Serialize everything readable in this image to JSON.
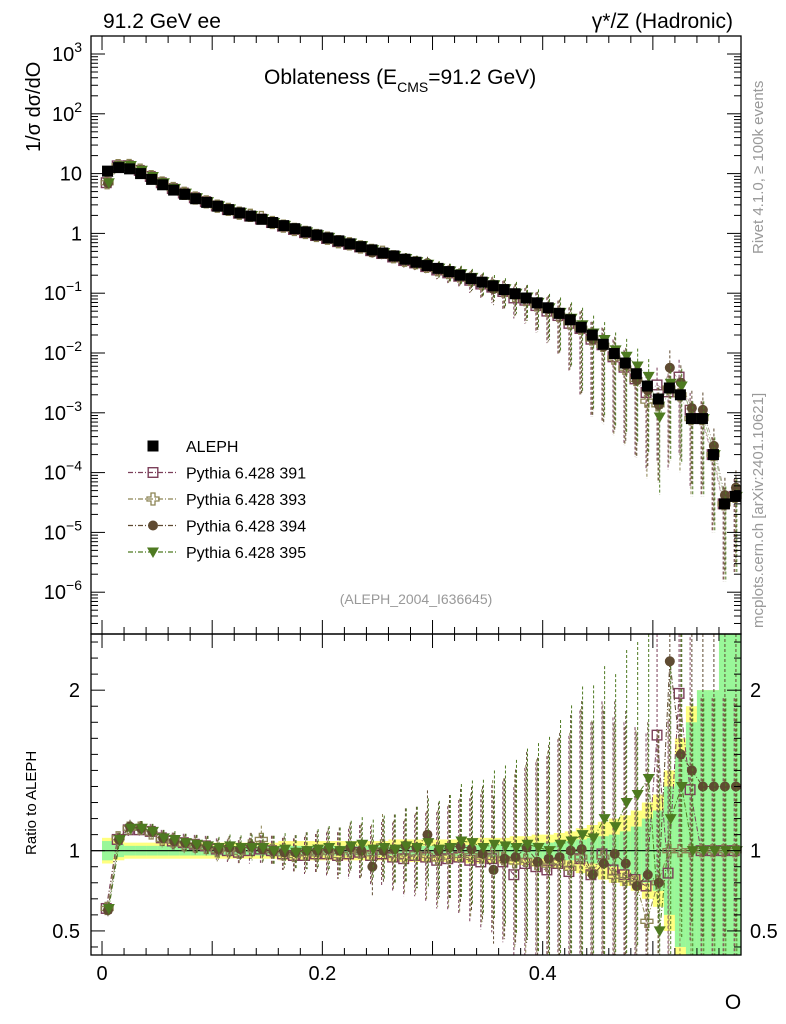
{
  "chart_data": {
    "type": "scatter",
    "header_left": "91.2 GeV ee",
    "header_right": "γ*/Z (Hadronic)",
    "title_main": "Oblateness (E",
    "title_sub": "CMS",
    "title_tail": "=91.2 GeV)",
    "ylabel_main": "1/σ  dσ/dO",
    "ylabel_ratio": "Ratio to ALEPH",
    "xlabel": "O",
    "watermark": "(ALEPH_2004_I636645)",
    "side_label_top": "Rivet 4.1.0, ≥ 100k events",
    "side_label_bottom": "mcplots.cern.ch [arXiv:2401.10621]",
    "xlim": [
      -0.01,
      0.58
    ],
    "ylim_main": [
      2e-07,
      2000
    ],
    "ylim_ratio": [
      0.35,
      2.35
    ],
    "x_ticks": [
      0,
      0.2,
      0.4
    ],
    "x_tick_labels": [
      "0",
      "0.2",
      "0.4"
    ],
    "ratio_ticks": [
      0.5,
      1,
      2
    ],
    "ratio_tick_labels": [
      "0.5",
      "1",
      "2"
    ],
    "main_ticks": [
      1e-06,
      1e-05,
      0.0001,
      0.001,
      0.01,
      0.1,
      1,
      10,
      100,
      1000
    ],
    "main_tick_labels": [
      {
        "base": "10",
        "exp": "−6"
      },
      {
        "base": "10",
        "exp": "−5"
      },
      {
        "base": "10",
        "exp": "−4"
      },
      {
        "base": "10",
        "exp": "−3"
      },
      {
        "base": "10",
        "exp": "−2"
      },
      {
        "base": "10",
        "exp": "−1"
      },
      {
        "base": "1",
        "exp": ""
      },
      {
        "base": "10",
        "exp": ""
      },
      {
        "base": "10",
        "exp": "2"
      },
      {
        "base": "10",
        "exp": "3"
      }
    ],
    "data": {
      "name": "ALEPH",
      "color": "#000000",
      "x": [
        0.005,
        0.015,
        0.025,
        0.035,
        0.045,
        0.055,
        0.065,
        0.075,
        0.085,
        0.095,
        0.105,
        0.115,
        0.125,
        0.135,
        0.145,
        0.155,
        0.165,
        0.175,
        0.185,
        0.195,
        0.205,
        0.215,
        0.225,
        0.235,
        0.245,
        0.255,
        0.265,
        0.275,
        0.285,
        0.295,
        0.305,
        0.315,
        0.325,
        0.335,
        0.345,
        0.355,
        0.365,
        0.375,
        0.385,
        0.395,
        0.405,
        0.415,
        0.425,
        0.435,
        0.445,
        0.455,
        0.465,
        0.475,
        0.485,
        0.495,
        0.505,
        0.515,
        0.525,
        0.535,
        0.545,
        0.555,
        0.565,
        0.575
      ],
      "y": [
        11.0,
        12.6,
        12.0,
        10.0,
        8.0,
        6.5,
        5.3,
        4.5,
        3.8,
        3.3,
        2.85,
        2.5,
        2.2,
        1.95,
        1.72,
        1.52,
        1.35,
        1.2,
        1.06,
        0.94,
        0.84,
        0.75,
        0.67,
        0.6,
        0.53,
        0.47,
        0.42,
        0.37,
        0.33,
        0.29,
        0.26,
        0.23,
        0.2,
        0.175,
        0.153,
        0.133,
        0.115,
        0.098,
        0.083,
        0.069,
        0.057,
        0.046,
        0.036,
        0.027,
        0.02,
        0.014,
        0.0098,
        0.0068,
        0.0045,
        0.0028,
        0.0017,
        0.0026,
        0.002,
        0.0008,
        0.0008,
        0.0002,
        3e-05,
        4e-05
      ],
      "stat_band": [
        0.06,
        0.04,
        0.03,
        0.03,
        0.03,
        0.03,
        0.03,
        0.03,
        0.03,
        0.03,
        0.03,
        0.03,
        0.03,
        0.03,
        0.03,
        0.03,
        0.03,
        0.03,
        0.03,
        0.03,
        0.03,
        0.03,
        0.03,
        0.03,
        0.03,
        0.03,
        0.03,
        0.03,
        0.03,
        0.03,
        0.03,
        0.03,
        0.035,
        0.035,
        0.035,
        0.04,
        0.04,
        0.045,
        0.045,
        0.05,
        0.05,
        0.055,
        0.06,
        0.07,
        0.08,
        0.09,
        0.1,
        0.12,
        0.15,
        0.2,
        0.25,
        0.4,
        0.6,
        0.8,
        1.0,
        1.0,
        1.4,
        1.4
      ],
      "total_band": [
        0.08,
        0.06,
        0.05,
        0.05,
        0.05,
        0.05,
        0.05,
        0.05,
        0.05,
        0.05,
        0.05,
        0.05,
        0.05,
        0.05,
        0.05,
        0.05,
        0.06,
        0.06,
        0.06,
        0.06,
        0.06,
        0.06,
        0.06,
        0.06,
        0.06,
        0.06,
        0.07,
        0.07,
        0.07,
        0.07,
        0.07,
        0.07,
        0.07,
        0.08,
        0.08,
        0.08,
        0.08,
        0.09,
        0.09,
        0.1,
        0.1,
        0.11,
        0.12,
        0.14,
        0.16,
        0.18,
        0.2,
        0.22,
        0.25,
        0.3,
        0.35,
        0.5,
        0.7,
        0.9,
        1.0,
        1.0,
        1.4,
        1.4
      ]
    },
    "series": [
      {
        "name": "Pythia 6.428 391",
        "color": "#7b3f5a",
        "marker": "open-square",
        "values": [
          0.64,
          1.07,
          1.13,
          1.13,
          1.12,
          1.08,
          1.06,
          1.05,
          1.04,
          1.03,
          1.01,
          1.0,
          0.99,
          1.0,
          1.01,
          1.0,
          0.98,
          0.97,
          0.97,
          0.98,
          0.98,
          0.97,
          0.98,
          0.99,
          0.97,
          0.98,
          0.96,
          0.95,
          0.97,
          0.96,
          0.94,
          0.95,
          0.96,
          0.94,
          0.93,
          0.95,
          0.93,
          0.85,
          0.92,
          0.9,
          0.88,
          0.92,
          0.87,
          0.95,
          0.85,
          0.98,
          0.88,
          0.85,
          0.82,
          0.78,
          1.72,
          0.86,
          1.98,
          1.38,
          1.0,
          1.0,
          1.0,
          1.0
        ]
      },
      {
        "name": "Pythia 6.428 393",
        "color": "#8c8454",
        "marker": "open-cross",
        "values": [
          0.64,
          1.08,
          1.14,
          1.14,
          1.11,
          1.07,
          1.06,
          1.04,
          1.03,
          1.02,
          1.0,
          1.01,
          0.99,
          1.03,
          1.07,
          1.0,
          0.98,
          0.97,
          0.98,
          0.98,
          0.99,
          0.97,
          1.0,
          0.99,
          0.98,
          1.03,
          0.97,
          0.96,
          0.98,
          0.97,
          0.95,
          0.96,
          0.97,
          0.97,
          0.96,
          0.98,
          0.95,
          0.93,
          0.94,
          0.92,
          0.91,
          0.93,
          0.89,
          0.96,
          0.86,
          0.96,
          0.84,
          0.82,
          0.8,
          0.56,
          0.8,
          1.0,
          1.0,
          1.0,
          1.0,
          1.0,
          1.0,
          1.0
        ]
      },
      {
        "name": "Pythia 6.428 394",
        "color": "#5f4b32",
        "marker": "filled-circle",
        "values": [
          0.63,
          1.07,
          1.15,
          1.14,
          1.12,
          1.08,
          1.06,
          1.05,
          1.04,
          1.03,
          1.01,
          1.02,
          1.01,
          1.03,
          1.01,
          1.0,
          0.99,
          0.99,
          1.0,
          1.0,
          1.01,
          1.0,
          1.02,
          1.0,
          0.9,
          1.0,
          1.01,
          1.03,
          1.02,
          1.1,
          1.0,
          1.02,
          1.03,
          1.01,
          0.98,
          0.88,
          0.95,
          0.96,
          1.02,
          0.93,
          0.95,
          0.96,
          1.0,
          1.01,
          0.85,
          0.92,
          0.98,
          0.92,
          0.78,
          0.85,
          0.8,
          2.18,
          1.6,
          1.5,
          1.4,
          1.4,
          1.4,
          1.4
        ]
      },
      {
        "name": "Pythia 6.428 395",
        "color": "#4e7a21",
        "marker": "filled-triangle-down",
        "values": [
          0.64,
          1.07,
          1.14,
          1.14,
          1.12,
          1.08,
          1.07,
          1.05,
          1.04,
          1.03,
          1.02,
          1.03,
          1.02,
          1.02,
          1.02,
          1.0,
          1.01,
          0.99,
          1.0,
          1.01,
          1.02,
          1.0,
          1.03,
          1.04,
          1.01,
          1.02,
          1.01,
          1.03,
          1.02,
          1.05,
          1.01,
          1.02,
          1.06,
          1.05,
          1.02,
          1.04,
          1.03,
          1.02,
          1.04,
          1.02,
          1.0,
          1.04,
          1.06,
          1.1,
          1.08,
          1.2,
          1.15,
          1.3,
          1.35,
          1.45,
          0.5,
          1.2,
          1.4,
          1.0,
          1.0,
          1.0,
          1.0,
          1.0
        ]
      }
    ]
  }
}
